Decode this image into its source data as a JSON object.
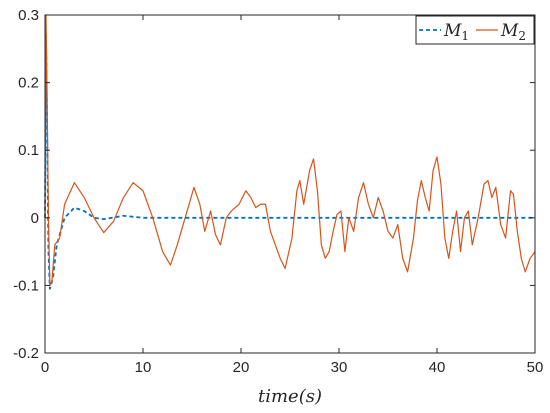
{
  "chart_data": {
    "type": "line",
    "title": "",
    "xlabel": "time(s)",
    "ylabel": "",
    "xlim": [
      0,
      50
    ],
    "ylim": [
      -0.2,
      0.3
    ],
    "grid": false,
    "legend_position": "top-right",
    "x_ticks": [
      "0",
      "10",
      "20",
      "30",
      "40",
      "50"
    ],
    "y_ticks": [
      "-0.2",
      "-0.1",
      "0",
      "0.1",
      "0.2",
      "0.3"
    ],
    "series": [
      {
        "name": "M1",
        "legend_text": "M",
        "legend_sub": "1",
        "color": "#0072BD",
        "style": "dashed",
        "points": [
          [
            0,
            0
          ],
          [
            0.1,
            0.27
          ],
          [
            0.2,
            0.15
          ],
          [
            0.35,
            -0.05
          ],
          [
            0.5,
            -0.105
          ],
          [
            0.8,
            -0.09
          ],
          [
            1.2,
            -0.04
          ],
          [
            2,
            0
          ],
          [
            3,
            0.015
          ],
          [
            4,
            0.01
          ],
          [
            5,
            0
          ],
          [
            6,
            -0.002
          ],
          [
            8,
            0.003
          ],
          [
            10,
            0
          ],
          [
            15,
            0
          ],
          [
            20,
            0
          ],
          [
            30,
            0
          ],
          [
            40,
            0
          ],
          [
            50,
            0
          ]
        ]
      },
      {
        "name": "M2",
        "legend_text": "M",
        "legend_sub": "2",
        "color": "#D95319",
        "style": "solid",
        "points": [
          [
            0,
            0
          ],
          [
            0.1,
            0.3
          ],
          [
            0.2,
            0.2
          ],
          [
            0.35,
            0
          ],
          [
            0.5,
            -0.1
          ],
          [
            0.7,
            -0.095
          ],
          [
            1,
            -0.04
          ],
          [
            1.5,
            -0.03
          ],
          [
            2,
            0.02
          ],
          [
            3,
            0.052
          ],
          [
            4,
            0.03
          ],
          [
            5,
            0
          ],
          [
            6,
            -0.022
          ],
          [
            7,
            -0.005
          ],
          [
            8,
            0.03
          ],
          [
            9,
            0.052
          ],
          [
            10,
            0.04
          ],
          [
            11,
            0
          ],
          [
            12,
            -0.05
          ],
          [
            12.8,
            -0.07
          ],
          [
            13.5,
            -0.04
          ],
          [
            14.5,
            0.01
          ],
          [
            15.2,
            0.045
          ],
          [
            15.8,
            0.02
          ],
          [
            16.3,
            -0.02
          ],
          [
            16.9,
            0.01
          ],
          [
            17.4,
            -0.025
          ],
          [
            17.9,
            -0.04
          ],
          [
            18.5,
            0
          ],
          [
            19,
            0.01
          ],
          [
            19.8,
            0.02
          ],
          [
            20.5,
            0.04
          ],
          [
            21,
            0.03
          ],
          [
            21.5,
            0.015
          ],
          [
            22,
            0.02
          ],
          [
            22.5,
            0.02
          ],
          [
            23,
            -0.02
          ],
          [
            24,
            -0.06
          ],
          [
            24.5,
            -0.075
          ],
          [
            25.2,
            -0.03
          ],
          [
            25.7,
            0.04
          ],
          [
            26,
            0.055
          ],
          [
            26.4,
            0.02
          ],
          [
            27,
            0.07
          ],
          [
            27.4,
            0.087
          ],
          [
            27.8,
            0.04
          ],
          [
            28.2,
            -0.04
          ],
          [
            28.6,
            -0.06
          ],
          [
            29,
            -0.05
          ],
          [
            29.4,
            -0.02
          ],
          [
            29.8,
            0.005
          ],
          [
            30.2,
            0.01
          ],
          [
            30.6,
            -0.05
          ],
          [
            31,
            0
          ],
          [
            31.5,
            -0.02
          ],
          [
            32,
            0.03
          ],
          [
            32.5,
            0.052
          ],
          [
            33,
            0.02
          ],
          [
            33.5,
            0
          ],
          [
            34,
            0.03
          ],
          [
            34.5,
            0.01
          ],
          [
            35,
            -0.02
          ],
          [
            35.5,
            -0.03
          ],
          [
            36,
            -0.01
          ],
          [
            36.5,
            -0.06
          ],
          [
            37,
            -0.08
          ],
          [
            37.6,
            -0.03
          ],
          [
            38,
            0.025
          ],
          [
            38.4,
            0.055
          ],
          [
            38.8,
            0.03
          ],
          [
            39.2,
            0.01
          ],
          [
            39.6,
            0.07
          ],
          [
            40,
            0.09
          ],
          [
            40.4,
            0.05
          ],
          [
            40.8,
            -0.03
          ],
          [
            41.2,
            -0.06
          ],
          [
            41.6,
            -0.02
          ],
          [
            42,
            0.01
          ],
          [
            42.4,
            -0.05
          ],
          [
            42.8,
            0
          ],
          [
            43.2,
            0.01
          ],
          [
            43.6,
            -0.04
          ],
          [
            44.2,
            0
          ],
          [
            44.8,
            0.05
          ],
          [
            45.2,
            0.055
          ],
          [
            45.6,
            0.03
          ],
          [
            46,
            0.045
          ],
          [
            46.5,
            -0.01
          ],
          [
            47,
            -0.03
          ],
          [
            47.5,
            0.04
          ],
          [
            47.8,
            0.035
          ],
          [
            48.2,
            -0.02
          ],
          [
            48.6,
            -0.06
          ],
          [
            49,
            -0.08
          ],
          [
            49.5,
            -0.06
          ],
          [
            50,
            -0.05
          ]
        ]
      }
    ]
  }
}
